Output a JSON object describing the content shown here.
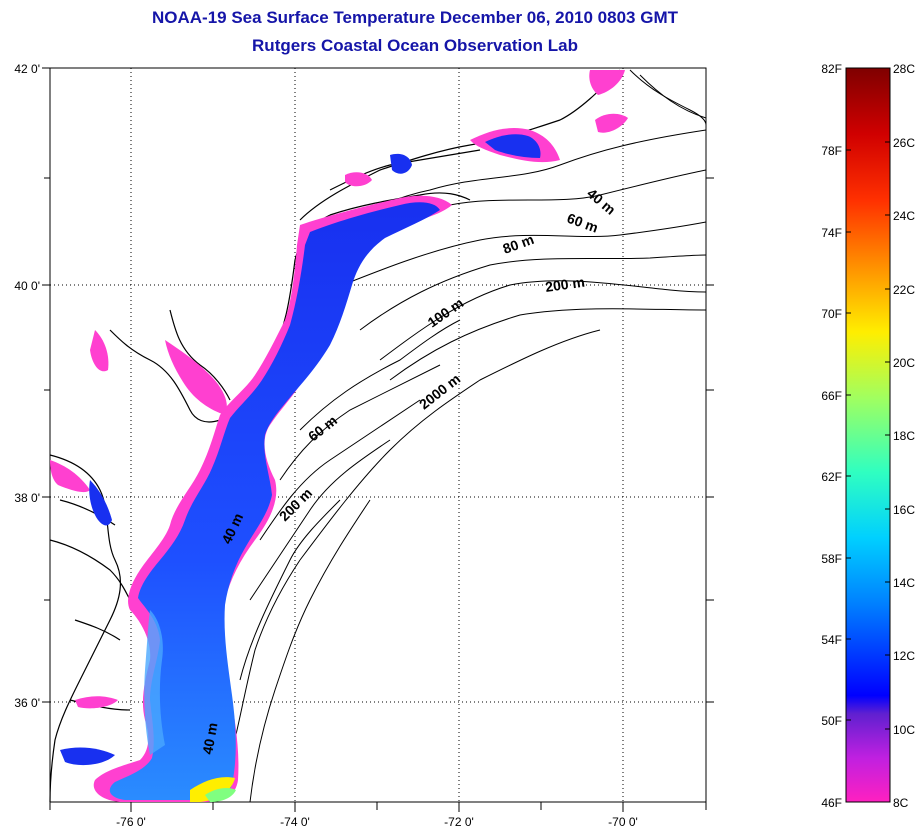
{
  "title": {
    "line1": "NOAA-19 Sea Surface Temperature December 06, 2010 0803 GMT",
    "line2": "Rutgers Coastal Ocean Observation Lab"
  },
  "map": {
    "lat_labels": [
      "42 0'",
      "40 0'",
      "38 0'",
      "36 0'"
    ],
    "lon_labels": [
      "-76 0'",
      "-74 0'",
      "-72 0'",
      "-70 0'"
    ],
    "isobath_labels": [
      "40 m",
      "60 m",
      "80 m",
      "200 m",
      "100 m",
      "2000 m",
      "60 m",
      "200 m",
      "40 m",
      "40 m"
    ]
  },
  "colorbar": {
    "fahrenheit": [
      "82F",
      "78F",
      "74F",
      "70F",
      "66F",
      "62F",
      "58F",
      "54F",
      "50F",
      "46F"
    ],
    "celsius": [
      "28C",
      "26C",
      "24C",
      "22C",
      "20C",
      "18C",
      "16C",
      "14C",
      "12C",
      "10C",
      "8C"
    ],
    "colors": [
      "#7f0000",
      "#ff0000",
      "#ff8000",
      "#ffff00",
      "#80ff80",
      "#00ffff",
      "#0080ff",
      "#0000ff",
      "#8000c0",
      "#ff00ff"
    ]
  }
}
